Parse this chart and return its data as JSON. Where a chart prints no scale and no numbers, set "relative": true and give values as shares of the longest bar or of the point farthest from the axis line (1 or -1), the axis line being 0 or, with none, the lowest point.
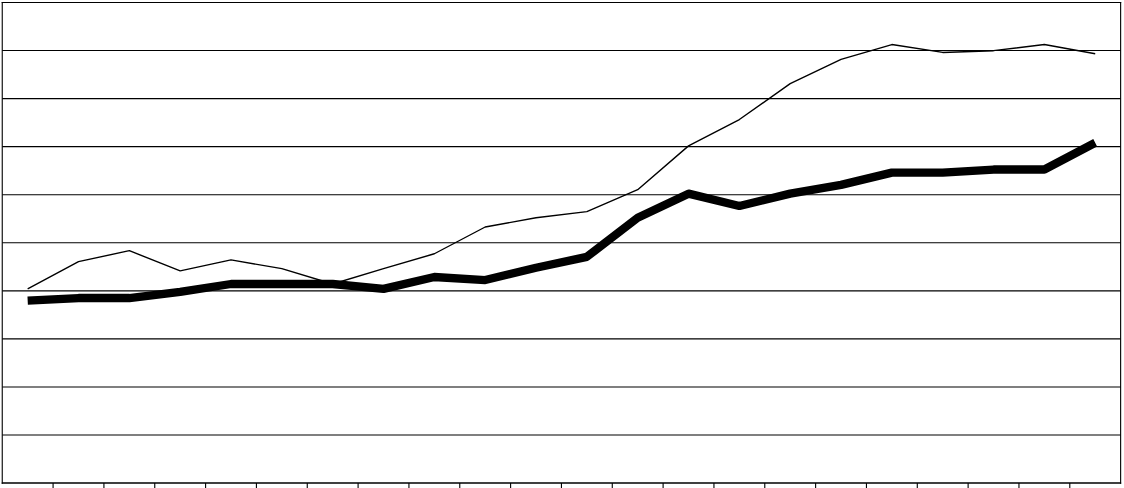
{
  "chart_data": {
    "type": "line",
    "relative": true,
    "grid": "y",
    "tick_labels": false,
    "marker": "none",
    "line_style": "solid",
    "categories": [
      null,
      null,
      null,
      null,
      null,
      null,
      null,
      null,
      null,
      null,
      null,
      null,
      null,
      null,
      null,
      null,
      null,
      null,
      null,
      null,
      null,
      null
    ],
    "series": [
      {
        "color": "#000000",
        "values": [
          0.443,
          0.505,
          0.53,
          0.484,
          0.509,
          0.489,
          0.454,
          0.489,
          0.523,
          0.584,
          0.605,
          0.619,
          0.669,
          0.769,
          0.829,
          0.911,
          0.966,
          1,
          0.982,
          0.986,
          1,
          0.979
        ]
      },
      {
        "color": "#000000",
        "values": [
          0.416,
          0.422,
          0.422,
          0.436,
          0.454,
          0.454,
          0.454,
          0.443,
          0.47,
          0.463,
          0.491,
          0.516,
          0.605,
          0.66,
          0.632,
          0.66,
          0.68,
          0.708,
          0.708,
          0.715,
          0.715,
          0.776
        ]
      }
    ]
  }
}
